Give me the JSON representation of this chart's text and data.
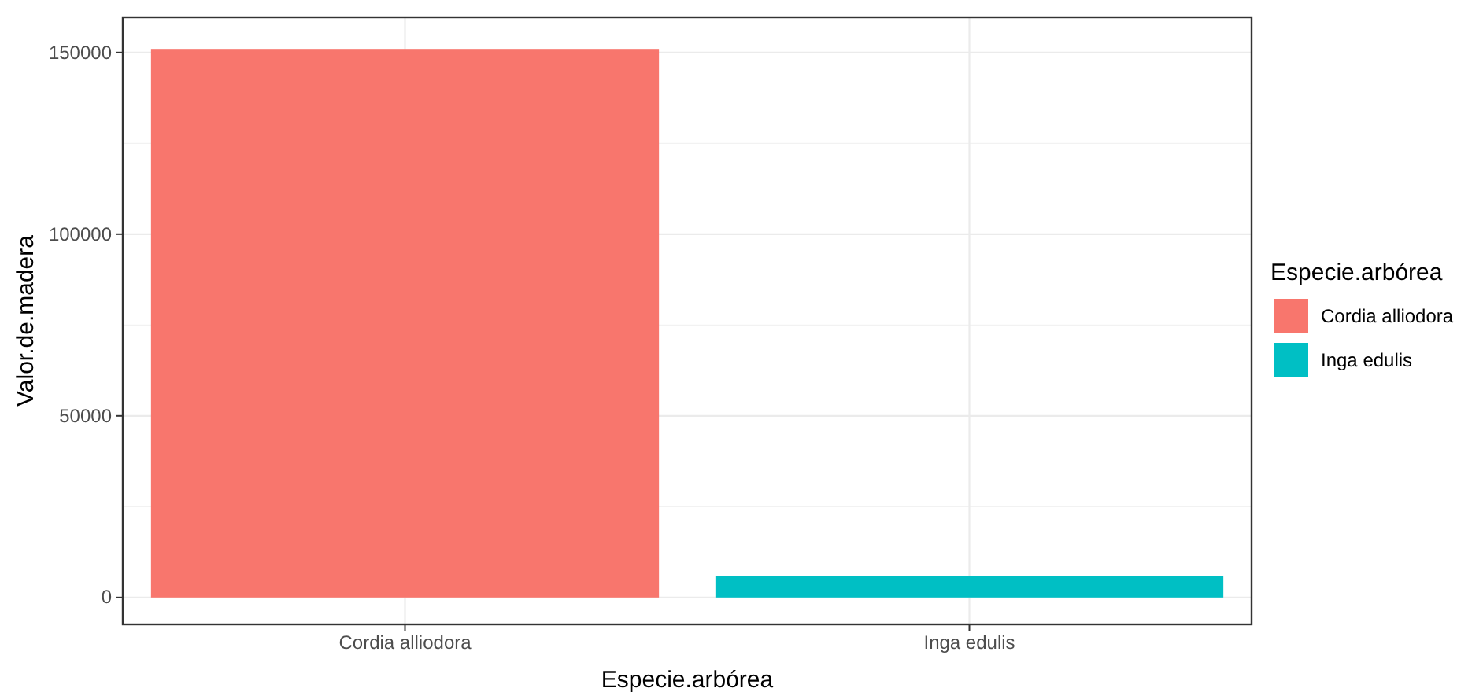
{
  "chart_data": {
    "type": "bar",
    "xlabel": "Especie.arbórea",
    "ylabel": "Valor.de.madera",
    "legend_title": "Especie.arbórea",
    "categories": [
      "Cordia alliodora",
      "Inga edulis"
    ],
    "series": [
      {
        "name": "Cordia alliodora",
        "color": "#f8766d",
        "values": [
          151000,
          null
        ]
      },
      {
        "name": "Inga edulis",
        "color": "#00bfc4",
        "values": [
          null,
          6000
        ]
      }
    ],
    "ylim": [
      -7400,
      159700
    ],
    "yticks": [
      0,
      50000,
      100000,
      150000
    ],
    "grid": true,
    "legend": "right"
  }
}
